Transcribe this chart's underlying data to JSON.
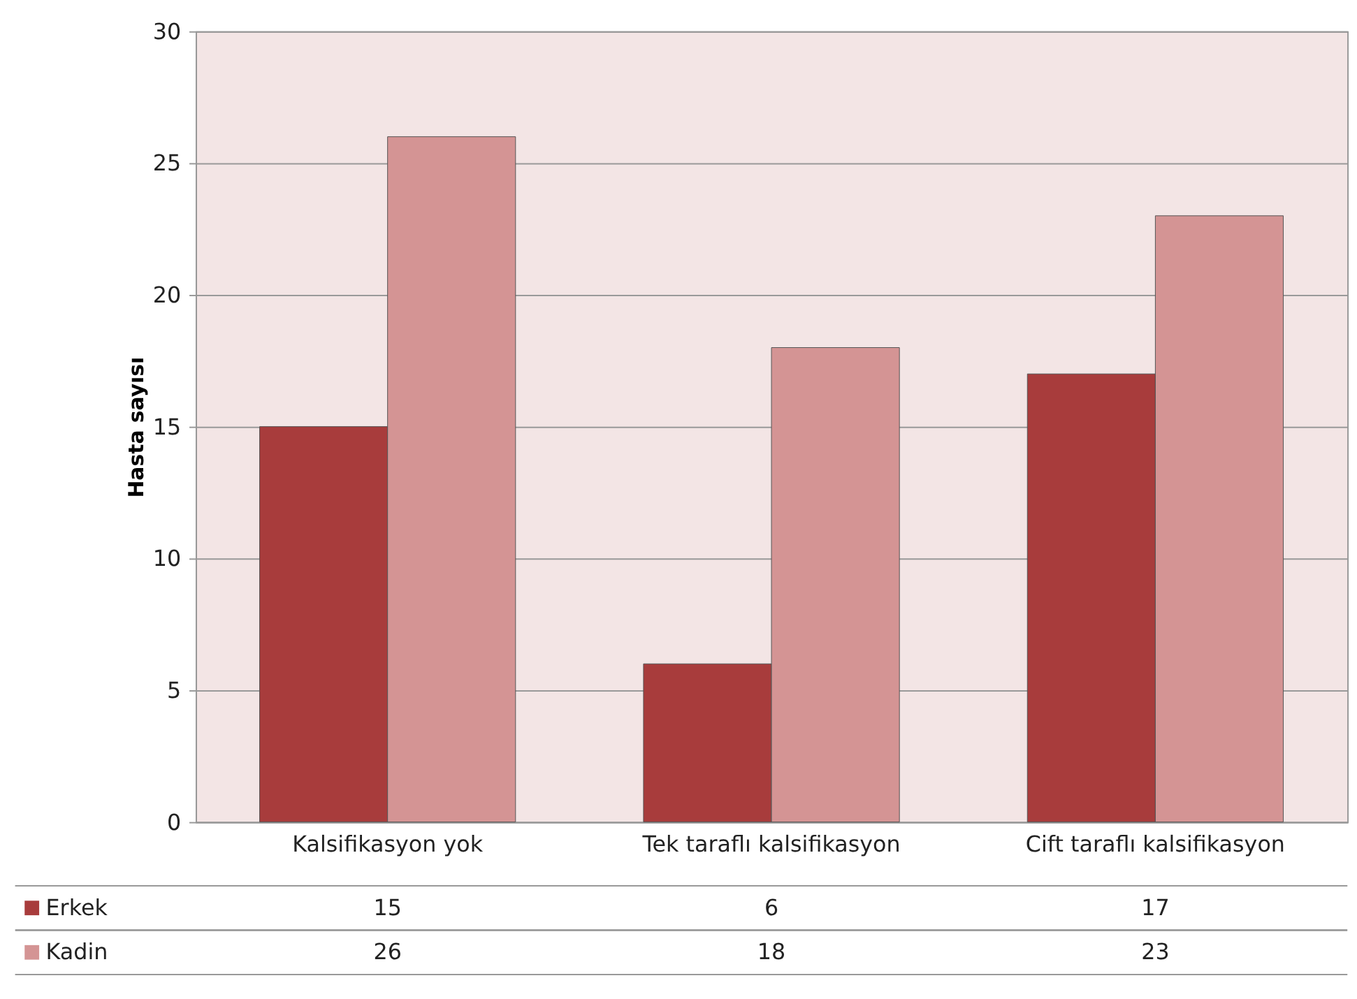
{
  "chart_data": {
    "type": "bar",
    "ylabel": "Hasta sayısı",
    "categories": [
      "Kalsifikasyon yok",
      "Tek taraflı kalsifikasyon",
      "Cift taraflı kalsifikasyon"
    ],
    "series": [
      {
        "name": "Erkek",
        "color": "#a83c3c",
        "values": [
          15,
          6,
          17
        ]
      },
      {
        "name": "Kadin",
        "color": "#d49494",
        "values": [
          26,
          18,
          23
        ]
      }
    ],
    "ylim": [
      0,
      30
    ],
    "yticks": [
      0,
      5,
      10,
      15,
      20,
      25,
      30
    ],
    "grid": "y",
    "data_labels": true,
    "legend": "bottom left"
  }
}
